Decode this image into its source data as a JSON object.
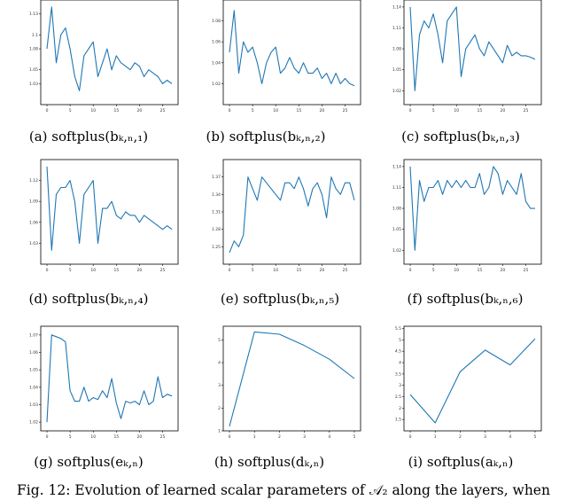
{
  "figure_caption": "Fig. 12: Evolution of learned scalar parameters of 𝒜₂ along the layers, when",
  "panels": [
    {
      "caption": "(a) softplus(bₖ,ₙ,₁)"
    },
    {
      "caption": "(b) softplus(bₖ,ₙ,₂)"
    },
    {
      "caption": "(c) softplus(bₖ,ₙ,₃)"
    },
    {
      "caption": "(d) softplus(bₖ,ₙ,₄)"
    },
    {
      "caption": "(e) softplus(bₖ,ₙ,₅)"
    },
    {
      "caption": "(f) softplus(bₖ,ₙ,₆)"
    },
    {
      "caption": "(g) softplus(eₖ,ₙ)"
    },
    {
      "caption": "(h) softplus(dₖ,ₙ)"
    },
    {
      "caption": "(i) softplus(aₖ,ₙ)"
    }
  ],
  "chart_data": [
    {
      "type": "line",
      "x": [
        0,
        1,
        2,
        3,
        4,
        5,
        6,
        7,
        8,
        9,
        10,
        11,
        12,
        13,
        14,
        15,
        16,
        17,
        18,
        19,
        20,
        21,
        22,
        23,
        24,
        25,
        26,
        27
      ],
      "y": [
        1.08,
        1.14,
        1.06,
        1.1,
        1.11,
        1.08,
        1.04,
        1.02,
        1.07,
        1.08,
        1.09,
        1.04,
        1.06,
        1.08,
        1.05,
        1.07,
        1.06,
        1.055,
        1.05,
        1.06,
        1.055,
        1.04,
        1.05,
        1.045,
        1.04,
        1.03,
        1.035,
        1.03
      ],
      "ylim": [
        1.0,
        1.15
      ],
      "xticks": [
        0,
        5,
        10,
        15,
        20,
        25
      ],
      "yticks": [
        1.03,
        1.05,
        1.08,
        1.1,
        1.13
      ]
    },
    {
      "type": "line",
      "x": [
        0,
        1,
        2,
        3,
        4,
        5,
        6,
        7,
        8,
        9,
        10,
        11,
        12,
        13,
        14,
        15,
        16,
        17,
        18,
        19,
        20,
        21,
        22,
        23,
        24,
        25,
        26,
        27
      ],
      "y": [
        1.05,
        1.09,
        1.03,
        1.06,
        1.05,
        1.055,
        1.04,
        1.02,
        1.04,
        1.05,
        1.055,
        1.03,
        1.035,
        1.045,
        1.035,
        1.03,
        1.04,
        1.03,
        1.03,
        1.035,
        1.025,
        1.03,
        1.02,
        1.03,
        1.02,
        1.025,
        1.02,
        1.018
      ],
      "ylim": [
        1.0,
        1.1
      ],
      "xticks": [
        0,
        5,
        10,
        15,
        20,
        25
      ],
      "yticks": [
        1.02,
        1.04,
        1.06,
        1.08
      ]
    },
    {
      "type": "line",
      "x": [
        0,
        1,
        2,
        3,
        4,
        5,
        6,
        7,
        8,
        9,
        10,
        11,
        12,
        13,
        14,
        15,
        16,
        17,
        18,
        19,
        20,
        21,
        22,
        23,
        24,
        25,
        26,
        27
      ],
      "y": [
        1.14,
        1.02,
        1.1,
        1.12,
        1.11,
        1.13,
        1.1,
        1.06,
        1.12,
        1.13,
        1.14,
        1.04,
        1.08,
        1.09,
        1.1,
        1.08,
        1.07,
        1.09,
        1.08,
        1.07,
        1.06,
        1.085,
        1.07,
        1.075,
        1.07,
        1.07,
        1.068,
        1.065
      ],
      "ylim": [
        1.0,
        1.15
      ],
      "xticks": [
        0,
        5,
        10,
        15,
        20,
        25
      ],
      "yticks": [
        1.02,
        1.05,
        1.08,
        1.11,
        1.14
      ]
    },
    {
      "type": "line",
      "x": [
        0,
        1,
        2,
        3,
        4,
        5,
        6,
        7,
        8,
        9,
        10,
        11,
        12,
        13,
        14,
        15,
        16,
        17,
        18,
        19,
        20,
        21,
        22,
        23,
        24,
        25,
        26,
        27
      ],
      "y": [
        1.14,
        1.02,
        1.1,
        1.11,
        1.11,
        1.12,
        1.09,
        1.03,
        1.1,
        1.11,
        1.12,
        1.03,
        1.08,
        1.08,
        1.09,
        1.07,
        1.065,
        1.075,
        1.07,
        1.07,
        1.06,
        1.07,
        1.065,
        1.06,
        1.055,
        1.05,
        1.055,
        1.05
      ],
      "ylim": [
        1.0,
        1.15
      ],
      "xticks": [
        0,
        5,
        10,
        15,
        20,
        25
      ],
      "yticks": [
        1.03,
        1.06,
        1.09,
        1.12
      ]
    },
    {
      "type": "line",
      "x": [
        0,
        1,
        2,
        3,
        4,
        5,
        6,
        7,
        8,
        9,
        10,
        11,
        12,
        13,
        14,
        15,
        16,
        17,
        18,
        19,
        20,
        21,
        22,
        23,
        24,
        25,
        26,
        27
      ],
      "y": [
        1.24,
        1.26,
        1.25,
        1.27,
        1.37,
        1.35,
        1.33,
        1.37,
        1.36,
        1.35,
        1.34,
        1.33,
        1.36,
        1.36,
        1.35,
        1.37,
        1.35,
        1.32,
        1.35,
        1.36,
        1.34,
        1.3,
        1.37,
        1.35,
        1.34,
        1.36,
        1.36,
        1.33
      ],
      "ylim": [
        1.22,
        1.4
      ],
      "xticks": [
        0,
        5,
        10,
        15,
        20,
        25
      ],
      "yticks": [
        1.25,
        1.28,
        1.31,
        1.34,
        1.37
      ]
    },
    {
      "type": "line",
      "x": [
        0,
        1,
        2,
        3,
        4,
        5,
        6,
        7,
        8,
        9,
        10,
        11,
        12,
        13,
        14,
        15,
        16,
        17,
        18,
        19,
        20,
        21,
        22,
        23,
        24,
        25,
        26,
        27
      ],
      "y": [
        1.14,
        1.02,
        1.12,
        1.09,
        1.11,
        1.11,
        1.12,
        1.1,
        1.12,
        1.11,
        1.12,
        1.11,
        1.12,
        1.11,
        1.11,
        1.13,
        1.1,
        1.11,
        1.14,
        1.13,
        1.1,
        1.12,
        1.11,
        1.1,
        1.13,
        1.09,
        1.08,
        1.08
      ],
      "ylim": [
        1.0,
        1.15
      ],
      "xticks": [
        0,
        5,
        10,
        15,
        20,
        25
      ],
      "yticks": [
        1.02,
        1.05,
        1.08,
        1.11,
        1.14
      ]
    },
    {
      "type": "line",
      "x": [
        0,
        1,
        2,
        3,
        4,
        5,
        6,
        7,
        8,
        9,
        10,
        11,
        12,
        13,
        14,
        15,
        16,
        17,
        18,
        19,
        20,
        21,
        22,
        23,
        24,
        25,
        26,
        27
      ],
      "y": [
        1.02,
        1.07,
        1.069,
        1.068,
        1.066,
        1.038,
        1.032,
        1.032,
        1.04,
        1.032,
        1.034,
        1.033,
        1.038,
        1.034,
        1.045,
        1.031,
        1.022,
        1.032,
        1.031,
        1.032,
        1.03,
        1.038,
        1.03,
        1.032,
        1.046,
        1.034,
        1.036,
        1.035
      ],
      "ylim": [
        1.015,
        1.075
      ],
      "xticks": [
        0,
        5,
        10,
        15,
        20,
        25
      ],
      "yticks": [
        1.02,
        1.03,
        1.04,
        1.05,
        1.06,
        1.07
      ]
    },
    {
      "type": "line",
      "x": [
        0,
        1,
        2,
        3,
        4,
        5
      ],
      "y": [
        1.2,
        5.35,
        5.25,
        4.75,
        4.15,
        3.3
      ],
      "ylim": [
        1.0,
        5.6
      ],
      "xticks": [
        0,
        1,
        2,
        3,
        4,
        5
      ],
      "yticks": [
        1,
        2,
        3,
        4,
        5
      ]
    },
    {
      "type": "line",
      "x": [
        0,
        1,
        2,
        3,
        4,
        5
      ],
      "y": [
        2.6,
        1.35,
        3.6,
        4.55,
        3.9,
        5.05
      ],
      "ylim": [
        1.0,
        5.6
      ],
      "xticks": [
        0,
        1,
        2,
        3,
        4,
        5
      ],
      "yticks": [
        1.5,
        2.0,
        2.5,
        3.0,
        3.5,
        4.0,
        4.5,
        5.0,
        5.5
      ]
    }
  ]
}
